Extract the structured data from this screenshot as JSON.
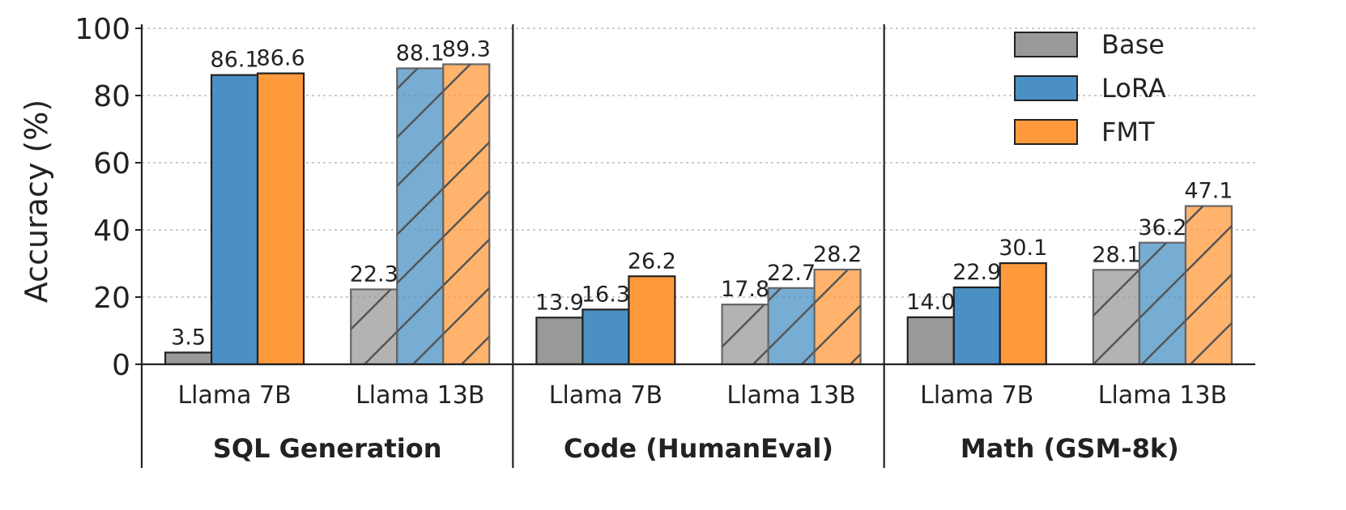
{
  "chart_data": {
    "type": "bar",
    "ylabel": "Accuracy (%)",
    "ylim": [
      0,
      100
    ],
    "yticks": [
      0,
      20,
      40,
      60,
      80,
      100
    ],
    "grid": true,
    "legend_position": "top-right",
    "groups": [
      {
        "name": "SQL Generation",
        "models": [
          "Llama 7B",
          "Llama 13B"
        ]
      },
      {
        "name": "Code (HumanEval)",
        "models": [
          "Llama 7B",
          "Llama 13B"
        ]
      },
      {
        "name": "Math (GSM-8k)",
        "models": [
          "Llama 7B",
          "Llama 13B"
        ]
      }
    ],
    "categories": [
      "SQL Generation / Llama 7B",
      "SQL Generation / Llama 13B",
      "Code (HumanEval) / Llama 7B",
      "Code (HumanEval) / Llama 13B",
      "Math (GSM-8k) / Llama 7B",
      "Math (GSM-8k) / Llama 13B"
    ],
    "series": [
      {
        "name": "Base",
        "color": "#999999",
        "values": [
          3.5,
          22.3,
          13.9,
          17.8,
          14.0,
          28.1
        ],
        "labels": [
          "3.5",
          "22.3",
          "13.9",
          "17.8",
          "14.0",
          "28.1"
        ]
      },
      {
        "name": "LoRA",
        "color": "#4a90c4",
        "values": [
          86.1,
          88.1,
          16.3,
          22.7,
          22.9,
          36.2
        ],
        "labels": [
          "86.1",
          "88.1",
          "16.3",
          "22.7",
          "22.9",
          "36.2"
        ]
      },
      {
        "name": "FMT",
        "color": "#ff9a3c",
        "values": [
          86.6,
          89.3,
          26.2,
          28.2,
          30.1,
          47.1
        ],
        "labels": [
          "86.6",
          "89.3",
          "26.2",
          "28.2",
          "30.1",
          "47.1"
        ]
      }
    ],
    "hatched_models": [
      "Llama 13B"
    ]
  }
}
